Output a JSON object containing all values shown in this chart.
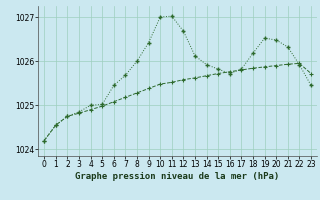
{
  "xlabel": "Graphe pression niveau de la mer (hPa)",
  "bg_color": "#cbe8f0",
  "grid_color": "#9ecfbe",
  "line1_color": "#2d6a2d",
  "line2_color": "#2d6a2d",
  "line1_y": [
    1024.2,
    1024.55,
    1024.75,
    1024.82,
    1024.9,
    1024.98,
    1025.08,
    1025.18,
    1025.28,
    1025.38,
    1025.48,
    1025.52,
    1025.58,
    1025.62,
    1025.67,
    1025.72,
    1025.76,
    1025.8,
    1025.84,
    1025.87,
    1025.9,
    1025.93,
    1025.95,
    1025.72
  ],
  "line2_y": [
    1024.2,
    1024.55,
    1024.75,
    1024.85,
    1025.0,
    1025.02,
    1025.45,
    1025.68,
    1026.0,
    1026.42,
    1027.0,
    1027.02,
    1026.68,
    1026.12,
    1025.92,
    1025.82,
    1025.72,
    1025.82,
    1026.18,
    1026.52,
    1026.48,
    1026.32,
    1025.92,
    1025.45
  ],
  "ylim": [
    1023.85,
    1027.25
  ],
  "yticks": [
    1024,
    1025,
    1026,
    1027
  ],
  "xticks": [
    0,
    1,
    2,
    3,
    4,
    5,
    6,
    7,
    8,
    9,
    10,
    11,
    12,
    13,
    14,
    15,
    16,
    17,
    18,
    19,
    20,
    21,
    22,
    23
  ],
  "xlabel_fontsize": 6.5,
  "tick_labelsize": 5.5
}
